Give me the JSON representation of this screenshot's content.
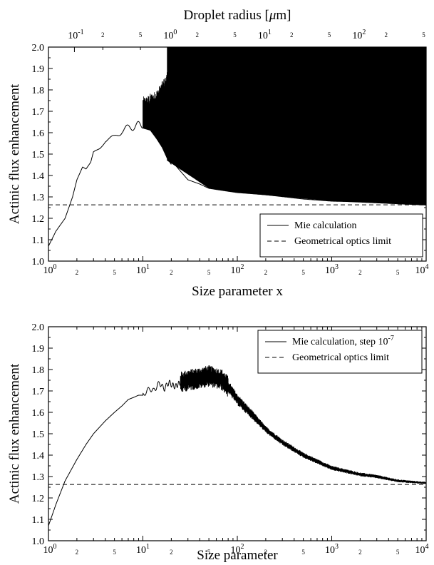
{
  "chart_data": [
    {
      "type": "line",
      "xscale": "log",
      "xlim": [
        1,
        10000
      ],
      "ylim": [
        1.0,
        2.0
      ],
      "xlabel": "Size parameter x",
      "ylabel": "Actinic flux enhancement",
      "top_axis_label_prefix": "Droplet radius [",
      "top_axis_label_mu": "μ",
      "top_axis_label_suffix": "m]",
      "yticks": [
        "1.0",
        "1.1",
        "1.2",
        "1.3",
        "1.4",
        "1.5",
        "1.6",
        "1.7",
        "1.8",
        "1.9",
        "2.0"
      ],
      "yticks_values": [
        1.0,
        1.1,
        1.2,
        1.3,
        1.4,
        1.5,
        1.6,
        1.7,
        1.8,
        1.9,
        2.0
      ],
      "xticks_major": [
        {
          "base": "10",
          "exp": "0",
          "value": 1
        },
        {
          "base": "10",
          "exp": "1",
          "value": 10
        },
        {
          "base": "10",
          "exp": "2",
          "value": 100
        },
        {
          "base": "10",
          "exp": "3",
          "value": 1000
        },
        {
          "base": "10",
          "exp": "4",
          "value": 10000
        }
      ],
      "xticks_minor": [
        {
          "label": "2",
          "value": 2
        },
        {
          "label": "5",
          "value": 5
        },
        {
          "label": "2",
          "value": 20
        },
        {
          "label": "5",
          "value": 50
        },
        {
          "label": "2",
          "value": 200
        },
        {
          "label": "5",
          "value": 500
        },
        {
          "label": "2",
          "value": 2000
        },
        {
          "label": "5",
          "value": 5000
        }
      ],
      "top_ticks_major": [
        {
          "base": "10",
          "exp": "-1",
          "value": 0.1
        },
        {
          "base": "10",
          "exp": "0",
          "value": 1
        },
        {
          "base": "10",
          "exp": "1",
          "value": 10
        },
        {
          "base": "10",
          "exp": "2",
          "value": 100
        }
      ],
      "top_ticks_minor": [
        {
          "label": "2",
          "value": 0.2
        },
        {
          "label": "5",
          "value": 0.5
        },
        {
          "label": "2",
          "value": 2
        },
        {
          "label": "5",
          "value": 5
        },
        {
          "label": "2",
          "value": 20
        },
        {
          "label": "5",
          "value": 50
        },
        {
          "label": "2",
          "value": 200
        },
        {
          "label": "5",
          "value": 500
        }
      ],
      "top_axis_limit_radius": [
        0.0531,
        531
      ],
      "legend_position": "bottom-right",
      "series": [
        {
          "name": "Mie calculation",
          "style": "solid",
          "x": [
            1.0,
            1.2,
            1.5,
            1.8,
            2.0,
            2.3,
            2.5,
            2.8,
            3.0,
            3.5,
            4.0,
            5.0,
            6.0,
            7.0,
            8.0,
            10.0,
            12.0,
            14.0,
            16.0,
            18.0,
            20.0,
            25.0,
            30.0,
            40.0,
            50.0,
            70.0,
            100.0,
            200.0,
            500.0,
            1000.0,
            10000.0
          ],
          "y": [
            1.07,
            1.14,
            1.2,
            1.3,
            1.38,
            1.44,
            1.43,
            1.46,
            1.51,
            1.53,
            1.56,
            1.58,
            1.61,
            1.62,
            1.63,
            1.64,
            1.63,
            1.59,
            1.55,
            1.5,
            1.47,
            1.42,
            1.38,
            1.36,
            1.34,
            1.33,
            1.32,
            1.31,
            1.29,
            1.28,
            1.27
          ],
          "envelope_max": [
            2.0,
            2.0,
            2.0,
            2.0,
            2.0
          ],
          "envelope_x": [
            18,
            50,
            100,
            1000,
            10000
          ],
          "envelope_min": [
            1.47,
            1.34,
            1.32,
            1.28,
            1.26
          ]
        },
        {
          "name": "Geometrical optics limit",
          "style": "dashed",
          "x": [
            1,
            10000
          ],
          "y": [
            1.263,
            1.263
          ]
        }
      ]
    },
    {
      "type": "line",
      "xscale": "log",
      "xlim": [
        1,
        10000
      ],
      "ylim": [
        1.0,
        2.0
      ],
      "xlabel": "Size parameter",
      "ylabel": "Actinic flux enhancement",
      "yticks": [
        "1.0",
        "1.1",
        "1.2",
        "1.3",
        "1.4",
        "1.5",
        "1.6",
        "1.7",
        "1.8",
        "1.9",
        "2.0"
      ],
      "yticks_values": [
        1.0,
        1.1,
        1.2,
        1.3,
        1.4,
        1.5,
        1.6,
        1.7,
        1.8,
        1.9,
        2.0
      ],
      "xticks_major": [
        {
          "base": "10",
          "exp": "0",
          "value": 1
        },
        {
          "base": "10",
          "exp": "1",
          "value": 10
        },
        {
          "base": "10",
          "exp": "2",
          "value": 100
        },
        {
          "base": "10",
          "exp": "3",
          "value": 1000
        },
        {
          "base": "10",
          "exp": "4",
          "value": 10000
        }
      ],
      "xticks_minor": [
        {
          "label": "2",
          "value": 2
        },
        {
          "label": "5",
          "value": 5
        },
        {
          "label": "2",
          "value": 20
        },
        {
          "label": "5",
          "value": 50
        },
        {
          "label": "2",
          "value": 200
        },
        {
          "label": "5",
          "value": 500
        },
        {
          "label": "2",
          "value": 2000
        },
        {
          "label": "5",
          "value": 5000
        }
      ],
      "legend_position": "top-right",
      "series": [
        {
          "name_prefix": "Mie calculation, step 10",
          "name_exp": "-7",
          "style": "solid",
          "x": [
            1.0,
            1.2,
            1.5,
            2.0,
            2.5,
            3.0,
            4.0,
            5.0,
            6.0,
            7.0,
            8.0,
            9.0,
            10.0,
            11.0,
            12.0,
            13.0,
            14.0,
            15.0,
            16.0,
            17.0,
            18.0,
            19.0,
            20.0,
            22.0,
            25.0,
            30.0,
            40.0,
            50.0,
            60.0,
            70.0,
            80.0,
            100.0,
            150.0,
            200.0,
            300.0,
            500.0,
            1000.0,
            2000.0,
            3000.0,
            5000.0,
            10000.0
          ],
          "y": [
            1.07,
            1.17,
            1.28,
            1.38,
            1.45,
            1.5,
            1.56,
            1.6,
            1.63,
            1.66,
            1.67,
            1.68,
            1.68,
            1.7,
            1.71,
            1.7,
            1.72,
            1.74,
            1.72,
            1.71,
            1.73,
            1.74,
            1.73,
            1.72,
            1.74,
            1.75,
            1.76,
            1.77,
            1.76,
            1.75,
            1.72,
            1.66,
            1.58,
            1.52,
            1.46,
            1.4,
            1.34,
            1.31,
            1.3,
            1.28,
            1.27
          ],
          "noise_x": [
            25,
            80,
            80,
            200,
            1000,
            3000,
            10000
          ],
          "noise_amp": [
            0.05,
            0.05,
            0.03,
            0.015,
            0.01,
            0.008,
            0.005
          ]
        },
        {
          "name": "Geometrical optics limit",
          "style": "dashed",
          "x": [
            1,
            10000
          ],
          "y": [
            1.263,
            1.263
          ]
        }
      ]
    }
  ]
}
